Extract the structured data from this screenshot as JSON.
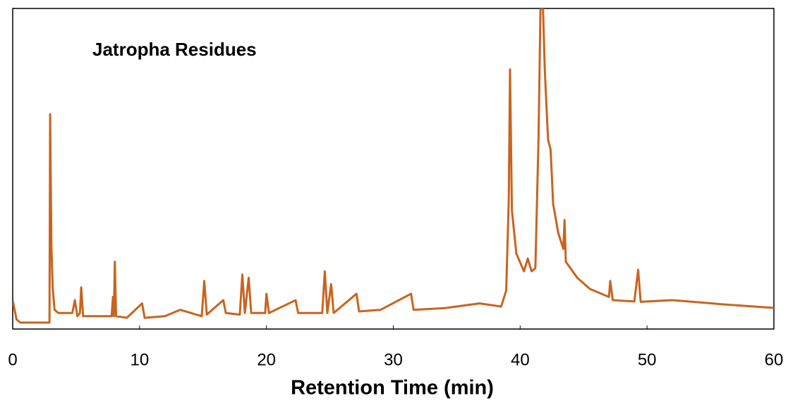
{
  "chart_data": {
    "type": "line",
    "title": "Jatropha Residues",
    "xlabel": "Retention Time (min)",
    "color": "#c8641e",
    "x": [
      0,
      0.3,
      0.6,
      2.9,
      2.95,
      3.05,
      3.15,
      3.3,
      3.6,
      4.0,
      4.7,
      4.9,
      5.1,
      5.3,
      5.4,
      5.55,
      6.5,
      7.8,
      7.9,
      7.97,
      8.05,
      8.15,
      9,
      10.2,
      10.4,
      12,
      13.2,
      14.9,
      15.1,
      15.3,
      16.6,
      16.8,
      17.9,
      18.1,
      18.3,
      18.6,
      18.8,
      19.9,
      20.0,
      20.2,
      22.3,
      22.5,
      24.4,
      24.6,
      24.8,
      25.1,
      25.3,
      27.1,
      27.3,
      29,
      31.4,
      31.6,
      34,
      36.8,
      38.5,
      38.9,
      39.1,
      39.2,
      39.35,
      39.7,
      40.3,
      40.6,
      40.9,
      41.2,
      41.45,
      41.6,
      41.8,
      41.95,
      42.2,
      42.4,
      42.6,
      43.0,
      43.4,
      43.5,
      43.6,
      44.5,
      45.5,
      47.0,
      47.1,
      47.3,
      49.0,
      49.3,
      49.5,
      52,
      56,
      60
    ],
    "values": [
      9,
      3,
      2,
      2,
      67,
      26,
      13,
      6,
      5,
      5,
      5,
      9,
      4,
      5,
      13,
      4,
      4,
      4,
      10,
      4,
      21,
      4,
      3.5,
      8,
      3.5,
      4,
      6,
      4,
      15,
      4.5,
      9,
      5,
      4.5,
      17,
      5,
      16,
      5,
      5,
      11,
      5,
      9,
      5,
      5,
      18,
      5,
      14,
      5,
      11,
      5.5,
      6,
      11,
      6,
      6.5,
      8,
      7,
      12,
      40,
      81,
      37,
      23.5,
      18,
      22,
      18,
      19,
      60,
      100,
      100,
      80,
      59,
      56,
      39,
      30,
      25,
      34,
      21,
      16,
      12.5,
      10,
      15,
      9,
      8.6,
      18.5,
      8.5,
      9,
      7.7,
      6.6
    ],
    "xlim": [
      0,
      60
    ],
    "xticks": [
      0,
      10,
      20,
      30,
      40,
      50,
      60
    ],
    "ylim": [
      0,
      100
    ]
  }
}
